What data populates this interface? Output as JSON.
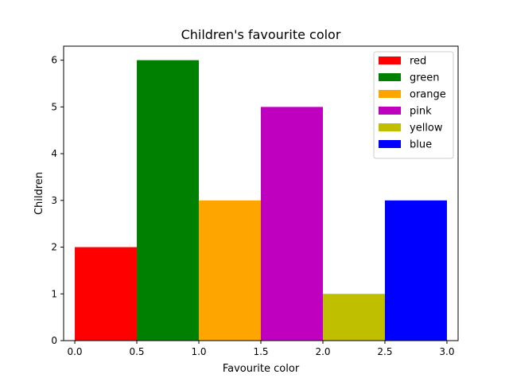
{
  "chart_data": {
    "type": "bar",
    "title": "Children's favourite color",
    "xlabel": "Favourite color",
    "ylabel": "Children",
    "xlim": [
      -0.09,
      3.09
    ],
    "ylim": [
      0,
      6.3
    ],
    "grid": false,
    "legend_position": "top-right",
    "bar_width": 0.5,
    "series": [
      {
        "name": "red",
        "x": 0.25,
        "value": 2,
        "color": "#ff0000"
      },
      {
        "name": "green",
        "x": 0.75,
        "value": 6,
        "color": "#008000"
      },
      {
        "name": "orange",
        "x": 1.25,
        "value": 3,
        "color": "#ffa500"
      },
      {
        "name": "pink",
        "x": 1.75,
        "value": 5,
        "color": "#bf00bf"
      },
      {
        "name": "yellow",
        "x": 2.25,
        "value": 1,
        "color": "#bfbf00"
      },
      {
        "name": "blue",
        "x": 2.75,
        "value": 3,
        "color": "#0000ff"
      }
    ],
    "x_ticks": [
      0.0,
      0.5,
      1.0,
      1.5,
      2.0,
      2.5,
      3.0
    ],
    "x_tick_labels": [
      "0.0",
      "0.5",
      "1.0",
      "1.5",
      "2.0",
      "2.5",
      "3.0"
    ],
    "y_ticks": [
      0,
      1,
      2,
      3,
      4,
      5,
      6
    ],
    "y_tick_labels": [
      "0",
      "1",
      "2",
      "3",
      "4",
      "5",
      "6"
    ]
  }
}
